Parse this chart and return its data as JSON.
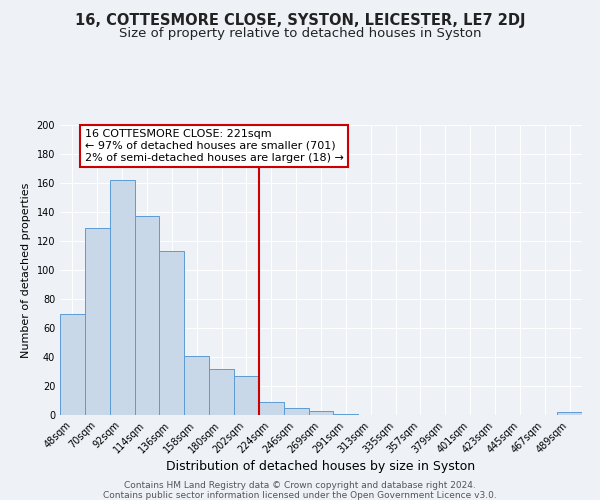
{
  "title": "16, COTTESMORE CLOSE, SYSTON, LEICESTER, LE7 2DJ",
  "subtitle": "Size of property relative to detached houses in Syston",
  "xlabel": "Distribution of detached houses by size in Syston",
  "ylabel": "Number of detached properties",
  "bar_labels": [
    "48sqm",
    "70sqm",
    "92sqm",
    "114sqm",
    "136sqm",
    "158sqm",
    "180sqm",
    "202sqm",
    "224sqm",
    "246sqm",
    "269sqm",
    "291sqm",
    "313sqm",
    "335sqm",
    "357sqm",
    "379sqm",
    "401sqm",
    "423sqm",
    "445sqm",
    "467sqm",
    "489sqm"
  ],
  "bar_values": [
    70,
    129,
    162,
    137,
    113,
    41,
    32,
    27,
    9,
    5,
    3,
    1,
    0,
    0,
    0,
    0,
    0,
    0,
    0,
    0,
    2
  ],
  "bar_color": "#c8d8e8",
  "bar_edgecolor": "#5b9bd5",
  "vline_index": 8,
  "vline_color": "#cc0000",
  "annotation_title": "16 COTTESMORE CLOSE: 221sqm",
  "annotation_line1": "← 97% of detached houses are smaller (701)",
  "annotation_line2": "2% of semi-detached houses are larger (18) →",
  "annotation_box_edgecolor": "#cc0000",
  "ylim": [
    0,
    200
  ],
  "yticks": [
    0,
    20,
    40,
    60,
    80,
    100,
    120,
    140,
    160,
    180,
    200
  ],
  "footer1": "Contains HM Land Registry data © Crown copyright and database right 2024.",
  "footer2": "Contains public sector information licensed under the Open Government Licence v3.0.",
  "background_color": "#eef2f7",
  "grid_color": "#ffffff",
  "title_fontsize": 10.5,
  "subtitle_fontsize": 9.5,
  "xlabel_fontsize": 9,
  "ylabel_fontsize": 8,
  "tick_fontsize": 7,
  "annotation_fontsize": 8,
  "footer_fontsize": 6.5
}
